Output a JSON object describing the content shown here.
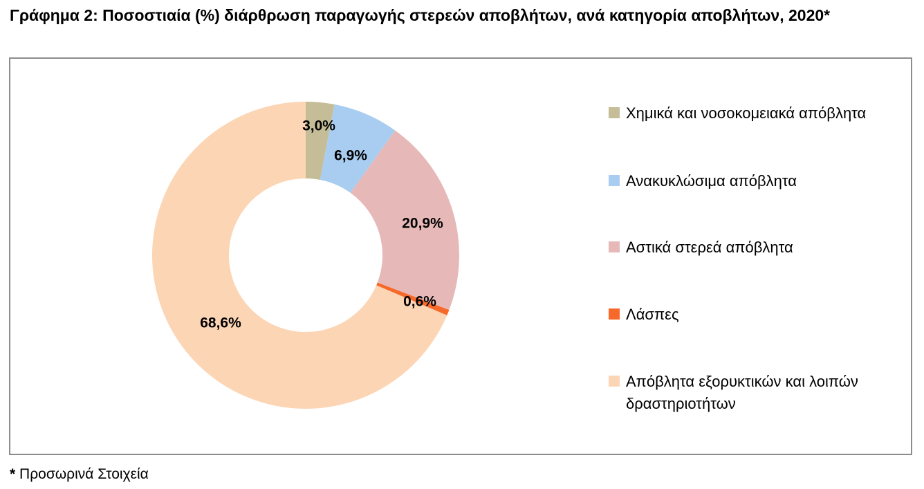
{
  "title": "Γράφημα 2: Ποσοστιαία (%) διάρθρωση παραγωγής στερεών αποβλήτων, ανά κατηγορία αποβλήτων, 2020*",
  "footnote": {
    "star": "*",
    "text": "Προσωρινά Στοιχεία"
  },
  "chart_data": {
    "type": "pie",
    "variant": "donut",
    "legend_position": "right",
    "categories": [
      "Χημικά και νοσοκομειακά απόβλητα",
      "Ανακυκλώσιμα απόβλητα",
      "Αστικά στερεά απόβλητα",
      "Λάσπες",
      "Απόβλητα εξορυκτικών και λοιπών δραστηριοτήτων"
    ],
    "values": [
      3.0,
      6.9,
      20.9,
      0.6,
      68.6
    ],
    "data_labels": [
      "3,0%",
      "6,9%",
      "20,9%",
      "0,6%",
      "68,6%"
    ],
    "colors": [
      "#c4bd97",
      "#a9cdf0",
      "#e6b9b8",
      "#f7692a",
      "#fcd5b5"
    ]
  }
}
